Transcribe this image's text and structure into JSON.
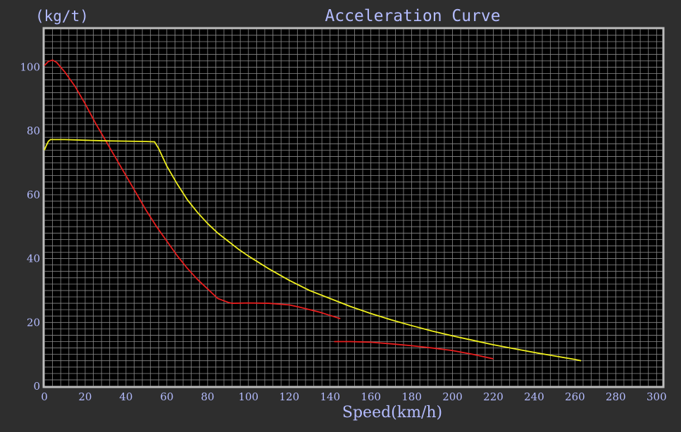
{
  "chart_data": {
    "type": "line",
    "title": "Acceleration Curve",
    "ylabel": "(kg/t)",
    "xlabel": "Speed(km/h)",
    "xlim": [
      0,
      303
    ],
    "ylim": [
      0,
      112
    ],
    "x_ticks": [
      0,
      20,
      40,
      60,
      80,
      100,
      120,
      140,
      160,
      180,
      200,
      220,
      240,
      260,
      280,
      300
    ],
    "y_ticks": [
      0,
      20,
      40,
      60,
      80,
      100
    ],
    "grid": true,
    "series": [
      {
        "color": "#e81e1e",
        "segments": [
          [
            [
              0,
              100.5
            ],
            [
              2,
              101.8
            ],
            [
              4,
              102.2
            ],
            [
              6,
              101.5
            ],
            [
              10,
              98.5
            ],
            [
              15,
              94.0
            ],
            [
              20,
              88.5
            ],
            [
              25,
              82.5
            ],
            [
              30,
              77.0
            ],
            [
              35,
              71.5
            ],
            [
              40,
              66.0
            ],
            [
              45,
              60.5
            ],
            [
              50,
              55.0
            ],
            [
              55,
              50.0
            ],
            [
              60,
              45.5
            ],
            [
              65,
              41.0
            ],
            [
              70,
              37.0
            ],
            [
              75,
              33.5
            ],
            [
              80,
              30.5
            ],
            [
              85,
              27.5
            ],
            [
              90,
              26.3
            ],
            [
              92,
              26.0
            ],
            [
              100,
              26.1
            ],
            [
              110,
              26.0
            ],
            [
              120,
              25.5
            ],
            [
              125,
              24.8
            ],
            [
              130,
              24.0
            ],
            [
              135,
              23.2
            ],
            [
              140,
              22.2
            ],
            [
              145,
              21.2
            ]
          ],
          [
            [
              142,
              14.0
            ],
            [
              150,
              14.0
            ],
            [
              160,
              13.8
            ],
            [
              170,
              13.3
            ],
            [
              180,
              12.7
            ],
            [
              190,
              12.0
            ],
            [
              200,
              11.2
            ],
            [
              210,
              10.0
            ],
            [
              220,
              8.6
            ]
          ]
        ]
      },
      {
        "color": "#f0f01e",
        "segments": [
          [
            [
              0,
              74.0
            ],
            [
              1,
              75.5
            ],
            [
              2,
              76.8
            ],
            [
              3,
              77.3
            ],
            [
              10,
              77.3
            ],
            [
              20,
              77.1
            ],
            [
              30,
              76.9
            ],
            [
              40,
              76.8
            ],
            [
              50,
              76.7
            ],
            [
              54,
              76.6
            ],
            [
              56,
              74.5
            ],
            [
              60,
              69.0
            ],
            [
              65,
              63.5
            ],
            [
              70,
              58.5
            ],
            [
              75,
              54.5
            ],
            [
              80,
              51.0
            ],
            [
              85,
              48.0
            ],
            [
              90,
              45.5
            ],
            [
              95,
              43.0
            ],
            [
              100,
              40.8
            ],
            [
              110,
              36.8
            ],
            [
              120,
              33.2
            ],
            [
              130,
              30.0
            ],
            [
              140,
              27.5
            ],
            [
              150,
              25.0
            ],
            [
              160,
              22.8
            ],
            [
              170,
              20.8
            ],
            [
              180,
              19.0
            ],
            [
              190,
              17.3
            ],
            [
              200,
              15.8
            ],
            [
              210,
              14.4
            ],
            [
              220,
              13.0
            ],
            [
              230,
              11.8
            ],
            [
              240,
              10.6
            ],
            [
              250,
              9.5
            ],
            [
              260,
              8.4
            ],
            [
              263,
              8.0
            ]
          ]
        ]
      }
    ]
  }
}
